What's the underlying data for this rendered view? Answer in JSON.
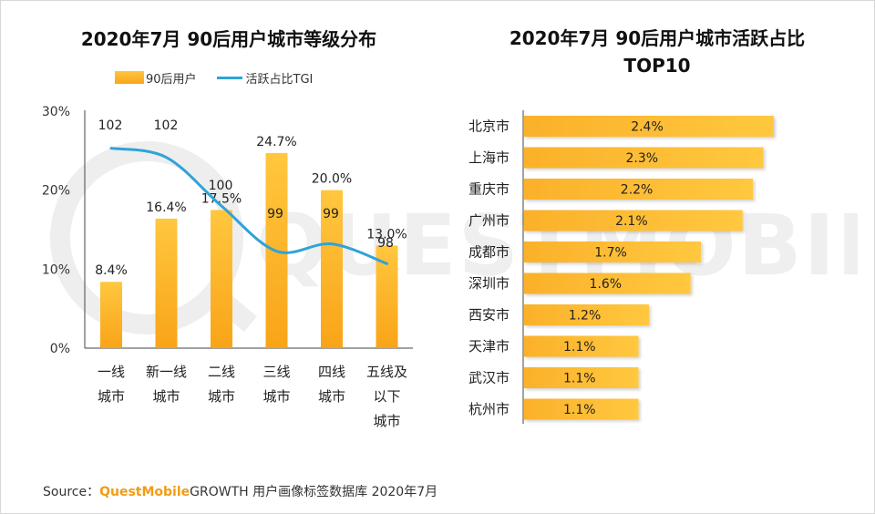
{
  "watermark_text": "QUESTMOBILE",
  "left_title": "2020年7月 90后用户城市等级分布",
  "right_title_line1": "2020年7月 90后用户城市活跃占比",
  "right_title_line2": "TOP10",
  "legend": {
    "bar_label": "90后用户",
    "line_label": "活跃占比TGI"
  },
  "colors": {
    "bar": "#fbb42a",
    "line": "#2fa3d8"
  },
  "source": {
    "prefix": "Source：",
    "brand": "QuestMobile",
    "rest": "GROWTH 用户画像标签数据库 2020年7月"
  },
  "chart_data": [
    {
      "type": "bar",
      "title": "2020年7月 90后用户城市等级分布",
      "categories": [
        [
          "一线",
          "城市"
        ],
        [
          "新一线",
          "城市"
        ],
        [
          "二线",
          "城市"
        ],
        [
          "三线",
          "城市"
        ],
        [
          "四线",
          "城市"
        ],
        [
          "五线及",
          "以下",
          "城市"
        ]
      ],
      "y_ticks": [
        "30%",
        "20%",
        "10%",
        "0%"
      ],
      "ylim": [
        0,
        30
      ],
      "legend_position": "top",
      "series": [
        {
          "name": "90后用户",
          "type": "bar",
          "values": [
            8.4,
            16.4,
            17.5,
            24.7,
            20.0,
            13.0
          ],
          "labels": [
            "8.4%",
            "16.4%",
            "17.5%",
            "24.7%",
            "20.0%",
            "13.0%"
          ]
        },
        {
          "name": "活跃占比TGI",
          "type": "line",
          "values": [
            102,
            102,
            100,
            99,
            99,
            98
          ]
        }
      ]
    },
    {
      "type": "bar",
      "orientation": "horizontal",
      "title": "2020年7月 90后用户城市活跃占比 TOP10",
      "categories": [
        "北京市",
        "上海市",
        "重庆市",
        "广州市",
        "成都市",
        "深圳市",
        "西安市",
        "天津市",
        "武汉市",
        "杭州市"
      ],
      "values": [
        2.4,
        2.3,
        2.2,
        2.1,
        1.7,
        1.6,
        1.2,
        1.1,
        1.1,
        1.1
      ],
      "labels": [
        "2.4%",
        "2.3%",
        "2.2%",
        "2.1%",
        "1.7%",
        "1.6%",
        "1.2%",
        "1.1%",
        "1.1%",
        "1.1%"
      ]
    }
  ]
}
